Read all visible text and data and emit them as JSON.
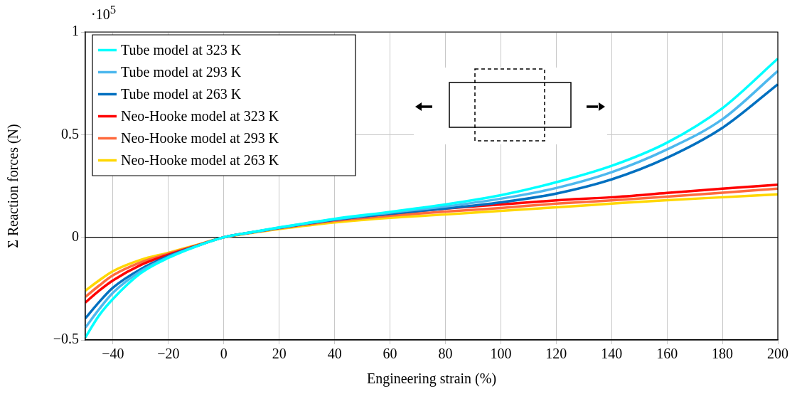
{
  "chart_data": {
    "type": "line",
    "xlabel": "Engineering strain (%)",
    "ylabel": "Σ Reaction forces (N)",
    "annotations": [
      "·10$^{5}$"
    ],
    "x": [
      -50,
      -45,
      -40,
      -30,
      -20,
      -10,
      0,
      10,
      20,
      40,
      60,
      80,
      100,
      120,
      140,
      160,
      180,
      200
    ],
    "xlim": [
      -50,
      200
    ],
    "xticks": [
      {
        "value": -40,
        "label": "−40"
      },
      {
        "value": -20,
        "label": "−20"
      },
      0,
      20,
      40,
      60,
      80,
      100,
      120,
      140,
      160,
      180,
      200
    ],
    "ylim": [
      -0.5,
      1
    ],
    "yticks": [
      {
        "value": -0.5,
        "label": "−0.5"
      },
      0,
      0.5,
      1
    ],
    "grid": true,
    "legend": "top left",
    "marker": "none",
    "line_style": "solid",
    "ref_lines": [
      {
        "axis": "y",
        "value": 0,
        "color": "#000000"
      }
    ],
    "series": [
      {
        "name": "Tube model at 323 K",
        "color": "#00ffff",
        "values": [
          -0.488,
          -0.38,
          -0.3,
          -0.175,
          -0.1,
          -0.045,
          0,
          0.025,
          0.048,
          0.09,
          0.124,
          0.16,
          0.205,
          0.268,
          0.348,
          0.461,
          0.629,
          0.87
        ]
      },
      {
        "name": "Tube model at 293 K",
        "color": "#4db8ee",
        "values": [
          -0.44,
          -0.35,
          -0.27,
          -0.165,
          -0.096,
          -0.044,
          0,
          0.024,
          0.047,
          0.088,
          0.12,
          0.15,
          0.188,
          0.24,
          0.317,
          0.428,
          0.575,
          0.81
        ]
      },
      {
        "name": "Tube model at 263 K",
        "color": "#0070c0",
        "values": [
          -0.395,
          -0.315,
          -0.245,
          -0.155,
          -0.092,
          -0.043,
          0,
          0.024,
          0.046,
          0.085,
          0.115,
          0.14,
          0.17,
          0.213,
          0.282,
          0.387,
          0.533,
          0.745
        ]
      },
      {
        "name": "Neo-Hooke model at 323 K",
        "color": "#ff0000",
        "values": [
          -0.318,
          -0.26,
          -0.21,
          -0.135,
          -0.085,
          -0.042,
          0,
          0.024,
          0.046,
          0.085,
          0.115,
          0.14,
          0.16,
          0.18,
          0.195,
          0.216,
          0.237,
          0.256
        ]
      },
      {
        "name": "Neo-Hooke model at 293 K",
        "color": "#ff6a3d",
        "values": [
          -0.29,
          -0.235,
          -0.185,
          -0.122,
          -0.08,
          -0.04,
          0,
          0.023,
          0.044,
          0.08,
          0.105,
          0.125,
          0.143,
          0.164,
          0.18,
          0.198,
          0.217,
          0.237
        ]
      },
      {
        "name": "Neo-Hooke model at 263 K",
        "color": "#ffd700",
        "values": [
          -0.26,
          -0.21,
          -0.165,
          -0.11,
          -0.075,
          -0.038,
          0,
          0.021,
          0.04,
          0.072,
          0.095,
          0.111,
          0.129,
          0.146,
          0.164,
          0.181,
          0.195,
          0.209
        ]
      }
    ]
  }
}
